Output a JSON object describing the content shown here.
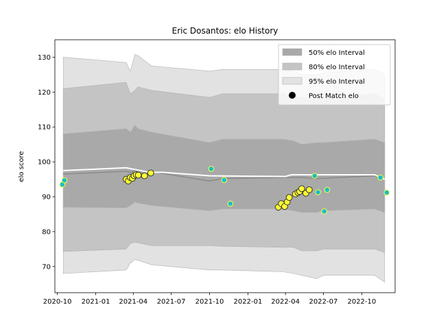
{
  "chart_data": {
    "type": "line",
    "title": "Eric Dosantos: elo History",
    "xlabel": "",
    "ylabel": "elo score",
    "xlim": [
      "2020-09-25",
      "2022-12-20"
    ],
    "ylim": [
      62.5,
      135
    ],
    "x_ticks": [
      "2020-10",
      "2021-01",
      "2021-04",
      "2021-07",
      "2021-10",
      "2022-01",
      "2022-04",
      "2022-07",
      "2022-10"
    ],
    "y_ticks": [
      70,
      80,
      90,
      100,
      110,
      120,
      130
    ],
    "grid": false,
    "legend_position": "top-right",
    "legend": [
      {
        "label": "50% elo Interval",
        "kind": "band",
        "color": "#a9a9a9"
      },
      {
        "label": "80% elo Interval",
        "kind": "band",
        "color": "#c4c4c4"
      },
      {
        "label": "95% elo Interval",
        "kind": "band",
        "color": "#e2e2e2"
      },
      {
        "label": "Post Match elo",
        "kind": "marker",
        "color": "#000000"
      }
    ],
    "colors": {
      "band_50": "#a9a9a9",
      "band_80": "#c4c4c4",
      "band_95": "#e2e2e2",
      "band_edge": "#b0b0b0",
      "mean_line": "#8a8a8a",
      "current_line": "#ffffff",
      "player_marker": "#ffff33",
      "player_marker_edge": "#333333",
      "opponent_marker": "#17becf",
      "opponent_marker_edge": "#ffff33"
    },
    "bands": [
      {
        "date": "2020-10-15",
        "mean": 96.5,
        "p50": [
          87.0,
          108.0
        ],
        "p80": [
          74.3,
          121.0
        ],
        "p95": [
          68.0,
          130.0
        ]
      },
      {
        "date": "2021-03-15",
        "mean": 97.3,
        "p50": [
          86.8,
          109.5
        ],
        "p80": [
          75.0,
          122.8
        ],
        "p95": [
          69.0,
          128.5
        ]
      },
      {
        "date": "2021-03-25",
        "mean": 97.0,
        "p50": [
          87.5,
          108.5
        ],
        "p80": [
          76.5,
          119.5
        ],
        "p95": [
          71.0,
          126.0
        ]
      },
      {
        "date": "2021-04-05",
        "mean": 97.6,
        "p50": [
          88.5,
          110.5
        ],
        "p80": [
          77.0,
          120.5
        ],
        "p95": [
          72.0,
          130.8
        ]
      },
      {
        "date": "2021-04-12",
        "mean": 97.3,
        "p50": [
          88.2,
          109.5
        ],
        "p80": [
          76.8,
          121.5
        ],
        "p95": [
          71.8,
          130.5
        ]
      },
      {
        "date": "2021-05-15",
        "mean": 97.2,
        "p50": [
          87.5,
          108.5
        ],
        "p80": [
          76.0,
          120.5
        ],
        "p95": [
          70.5,
          127.5
        ]
      },
      {
        "date": "2021-10-01",
        "mean": 94.5,
        "p50": [
          86.0,
          105.5
        ],
        "p80": [
          76.0,
          118.5
        ],
        "p95": [
          69.0,
          126.0
        ]
      },
      {
        "date": "2021-11-01",
        "mean": 95.2,
        "p50": [
          86.5,
          106.5
        ],
        "p80": [
          75.8,
          119.5
        ],
        "p95": [
          69.0,
          126.5
        ]
      },
      {
        "date": "2022-03-25",
        "mean": 95.5,
        "p50": [
          86.5,
          106.5
        ],
        "p80": [
          75.5,
          119.5
        ],
        "p95": [
          68.5,
          126.5
        ]
      },
      {
        "date": "2022-04-20",
        "mean": 95.5,
        "p50": [
          86.0,
          106.0
        ],
        "p80": [
          75.5,
          119.0
        ],
        "p95": [
          68.0,
          126.0
        ]
      },
      {
        "date": "2022-05-10",
        "mean": 95.5,
        "p50": [
          85.5,
          105.0
        ],
        "p80": [
          74.5,
          118.5
        ],
        "p95": [
          67.5,
          125.0
        ]
      },
      {
        "date": "2022-06-15",
        "mean": 95.2,
        "p50": [
          85.5,
          105.5
        ],
        "p80": [
          74.5,
          118.0
        ],
        "p95": [
          66.5,
          125.0
        ]
      },
      {
        "date": "2022-07-01",
        "mean": 95.3,
        "p50": [
          86.0,
          105.5
        ],
        "p80": [
          75.0,
          118.5
        ],
        "p95": [
          67.5,
          125.5
        ]
      },
      {
        "date": "2022-11-01",
        "mean": 96.0,
        "p50": [
          86.5,
          106.5
        ],
        "p80": [
          75.0,
          119.5
        ],
        "p95": [
          67.5,
          126.5
        ]
      },
      {
        "date": "2022-11-25",
        "mean": 95.0,
        "p50": [
          85.5,
          105.5
        ],
        "p80": [
          74.0,
          118.0
        ],
        "p95": [
          65.5,
          125.0
        ]
      }
    ],
    "current_elo": [
      {
        "date": "2020-10-15",
        "value": 97.5
      },
      {
        "date": "2021-03-15",
        "value": 98.3
      },
      {
        "date": "2021-04-05",
        "value": 97.8
      },
      {
        "date": "2021-05-10",
        "value": 97.0
      },
      {
        "date": "2021-06-10",
        "value": 97.0
      },
      {
        "date": "2021-10-01",
        "value": 96.0
      },
      {
        "date": "2022-04-01",
        "value": 95.8
      },
      {
        "date": "2022-04-15",
        "value": 96.3
      },
      {
        "date": "2022-11-01",
        "value": 96.3
      },
      {
        "date": "2022-11-25",
        "value": 95.0
      }
    ],
    "player_points": [
      {
        "date": "2021-03-15",
        "value": 95.0
      },
      {
        "date": "2021-03-20",
        "value": 94.5
      },
      {
        "date": "2021-03-25",
        "value": 95.5
      },
      {
        "date": "2021-03-30",
        "value": 95.3
      },
      {
        "date": "2021-04-03",
        "value": 96.0
      },
      {
        "date": "2021-04-08",
        "value": 96.3
      },
      {
        "date": "2021-04-13",
        "value": 96.2
      },
      {
        "date": "2021-04-28",
        "value": 96.0
      },
      {
        "date": "2021-05-13",
        "value": 96.8
      },
      {
        "date": "2022-03-15",
        "value": 87.0
      },
      {
        "date": "2022-03-22",
        "value": 88.0
      },
      {
        "date": "2022-03-30",
        "value": 87.2
      },
      {
        "date": "2022-04-05",
        "value": 88.5
      },
      {
        "date": "2022-04-10",
        "value": 89.8
      },
      {
        "date": "2022-04-25",
        "value": 90.8
      },
      {
        "date": "2022-05-01",
        "value": 91.2
      },
      {
        "date": "2022-05-05",
        "value": 91.5
      },
      {
        "date": "2022-05-10",
        "value": 92.3
      },
      {
        "date": "2022-05-20",
        "value": 91.0
      },
      {
        "date": "2022-05-28",
        "value": 92.0
      }
    ],
    "opponent_points": [
      {
        "date": "2020-10-13",
        "value": 93.5
      },
      {
        "date": "2020-10-18",
        "value": 94.7
      },
      {
        "date": "2021-10-05",
        "value": 98.0
      },
      {
        "date": "2021-11-05",
        "value": 94.8
      },
      {
        "date": "2021-11-20",
        "value": 88.0
      },
      {
        "date": "2022-06-10",
        "value": 96.0
      },
      {
        "date": "2022-06-18",
        "value": 91.3
      },
      {
        "date": "2022-07-03",
        "value": 85.8
      },
      {
        "date": "2022-07-10",
        "value": 92.0
      },
      {
        "date": "2022-11-15",
        "value": 95.5
      },
      {
        "date": "2022-11-30",
        "value": 91.2
      }
    ]
  }
}
